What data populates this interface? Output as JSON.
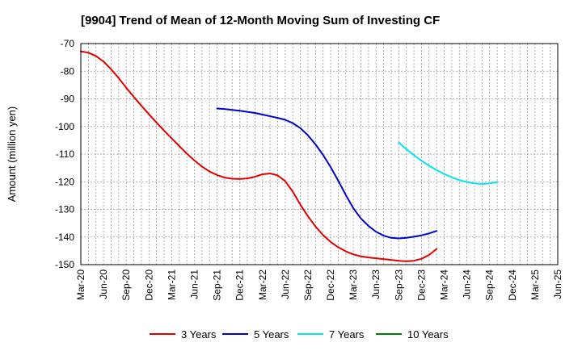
{
  "chart_data": {
    "type": "line",
    "title": "[9904]  Trend of Mean of 12-Month Moving Sum of Investing CF",
    "xlabel": "",
    "ylabel": "Amount (million yen)",
    "ylim": [
      -150,
      -70
    ],
    "yticks": [
      -70,
      -80,
      -90,
      -100,
      -110,
      -120,
      -130,
      -140,
      -150
    ],
    "x_tick_labels": [
      "Mar-20",
      "Jun-20",
      "Sep-20",
      "Dec-20",
      "Mar-21",
      "Jun-21",
      "Sep-21",
      "Dec-21",
      "Mar-22",
      "Jun-22",
      "Sep-22",
      "Dec-22",
      "Mar-23",
      "Jun-23",
      "Sep-23",
      "Dec-23",
      "Mar-24",
      "Jun-24",
      "Sep-24",
      "Dec-24",
      "Mar-25",
      "Jun-25"
    ],
    "grid": true,
    "legend_position": "bottom",
    "series": [
      {
        "name": "3 Years",
        "color": "#e00000",
        "start_index": 0,
        "values": [
          -72.8,
          -73.3,
          -74.5,
          -76.5,
          -79.3,
          -82.5,
          -86.0,
          -89.3,
          -92.5,
          -95.6,
          -98.6,
          -101.5,
          -104.3,
          -107.1,
          -109.8,
          -112.3,
          -114.5,
          -116.3,
          -117.6,
          -118.5,
          -118.9,
          -119.0,
          -118.8,
          -118.2,
          -117.3,
          -117.0,
          -117.7,
          -119.8,
          -123.6,
          -128.3,
          -132.5,
          -136.2,
          -139.3,
          -141.8,
          -143.7,
          -145.2,
          -146.3,
          -147.0,
          -147.4,
          -147.7,
          -148.0,
          -148.3,
          -148.6,
          -148.8,
          -148.6,
          -147.9,
          -146.5,
          -144.3
        ]
      },
      {
        "name": "5 Years",
        "color": "#0000cc",
        "start_index": 18,
        "values": [
          -93.5,
          -93.7,
          -94.0,
          -94.3,
          -94.7,
          -95.1,
          -95.7,
          -96.3,
          -96.9,
          -97.6,
          -98.8,
          -100.6,
          -103.2,
          -106.5,
          -110.3,
          -114.7,
          -119.6,
          -124.8,
          -129.6,
          -133.3,
          -136.0,
          -138.1,
          -139.5,
          -140.3,
          -140.5,
          -140.3,
          -139.9,
          -139.4,
          -138.7,
          -137.8
        ]
      },
      {
        "name": "7 Years",
        "color": "#00e5ee",
        "start_index": 42,
        "values": [
          -105.8,
          -108.2,
          -110.4,
          -112.4,
          -114.2,
          -115.8,
          -117.2,
          -118.4,
          -119.4,
          -120.1,
          -120.6,
          -120.8,
          -120.6,
          -120.1
        ]
      },
      {
        "name": "10 Years",
        "color": "#008000",
        "start_index": 0,
        "values": []
      }
    ]
  }
}
